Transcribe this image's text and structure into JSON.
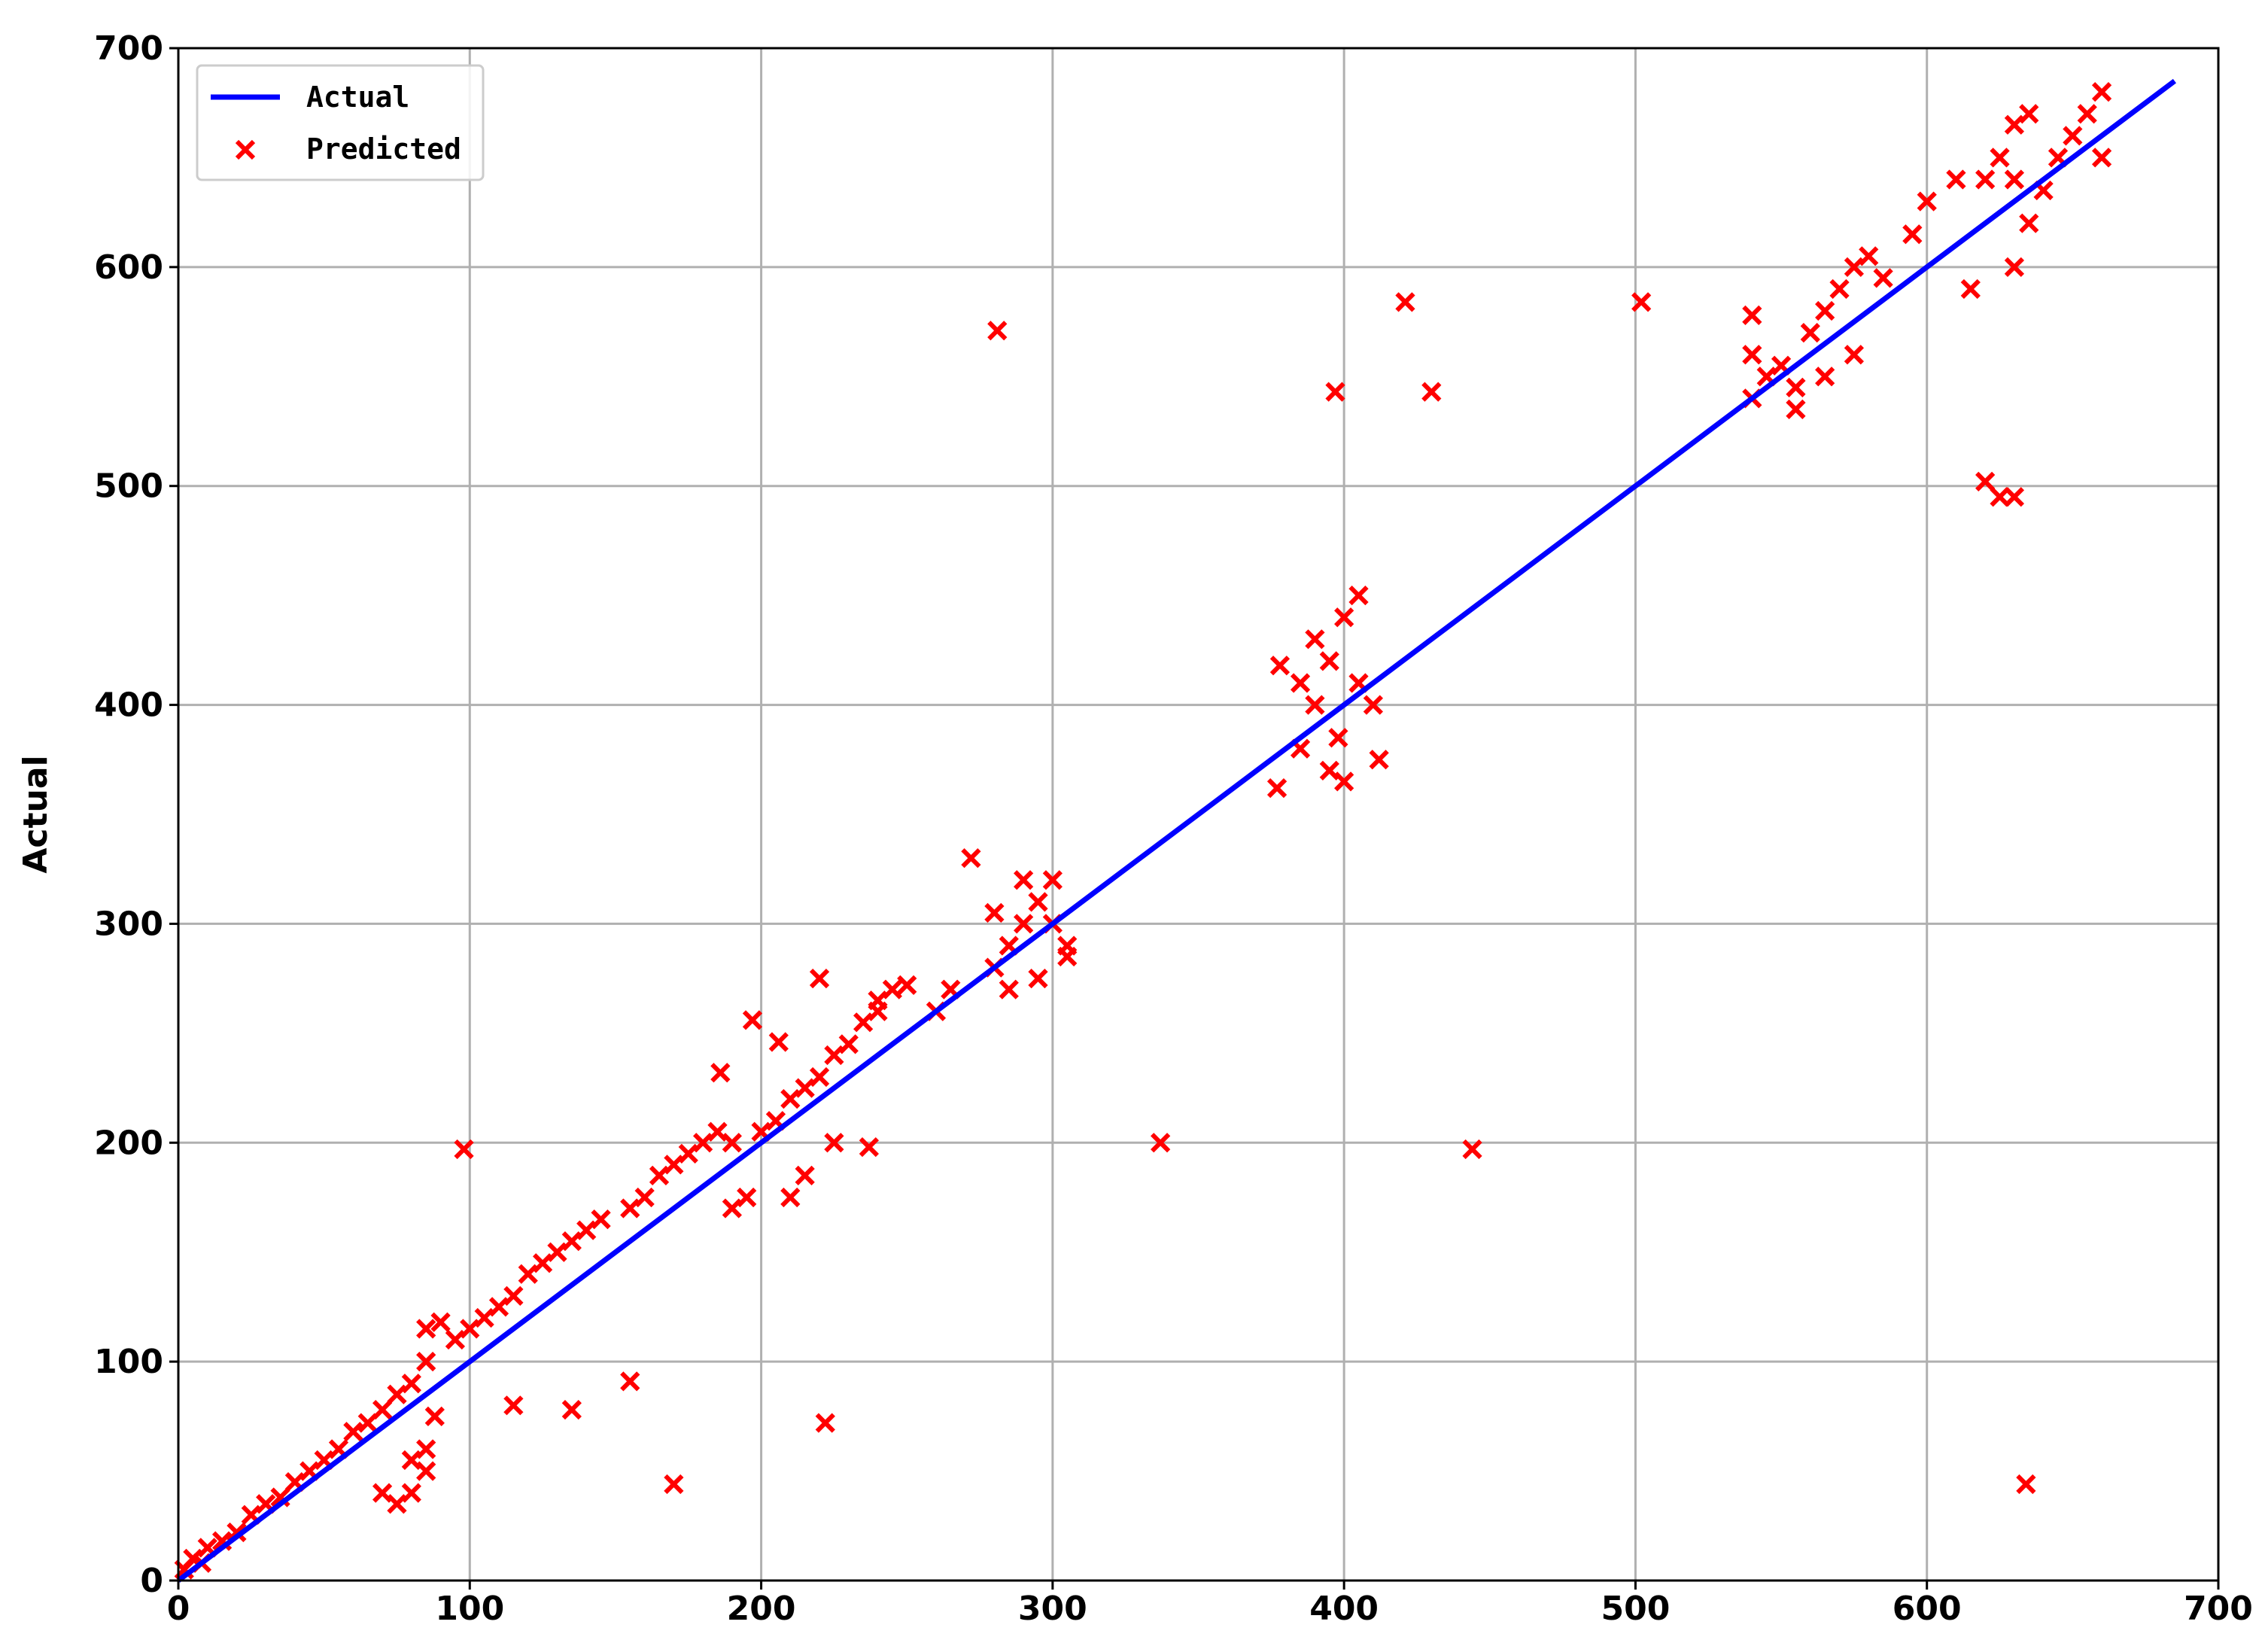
{
  "chart_data": {
    "type": "scatter",
    "y_label": "Actual",
    "grid": true,
    "legend": "upper left",
    "xlim": [
      0,
      700
    ],
    "ylim": [
      0,
      700
    ],
    "xticks": [
      0,
      100,
      200,
      300,
      400,
      500,
      600,
      700
    ],
    "yticks": [
      0,
      100,
      200,
      300,
      400,
      500,
      600,
      700
    ],
    "line": {
      "name": "Actual",
      "color": "#0000ff",
      "x": [
        0,
        685
      ],
      "values": [
        0,
        685
      ]
    },
    "series": [
      {
        "name": "Predicted",
        "color": "#ff0000",
        "x": [
          2,
          5,
          8,
          10,
          15,
          20,
          25,
          30,
          35,
          40,
          45,
          50,
          55,
          60,
          65,
          70,
          75,
          80,
          85,
          85,
          90,
          95,
          100,
          105,
          110,
          115,
          120,
          125,
          130,
          135,
          140,
          145,
          70,
          75,
          80,
          85,
          85,
          88,
          80,
          155,
          160,
          165,
          170,
          175,
          180,
          185,
          190,
          190,
          195,
          200,
          205,
          210,
          215,
          220,
          225,
          230,
          235,
          240,
          245,
          220,
          197,
          206,
          186,
          210,
          215,
          225,
          237,
          240,
          250,
          260,
          265,
          280,
          285,
          290,
          295,
          300,
          305,
          285,
          295,
          300,
          290,
          280,
          305,
          385,
          390,
          395,
          400,
          405,
          410,
          395,
          400,
          390,
          405,
          412,
          385,
          398,
          540,
          545,
          550,
          555,
          560,
          565,
          570,
          575,
          580,
          575,
          565,
          555,
          540,
          540,
          585,
          595,
          600,
          610,
          620,
          625,
          630,
          635,
          630,
          640,
          645,
          650,
          655,
          660,
          660,
          615,
          630,
          625,
          620,
          630,
          635,
          281,
          397,
          421,
          430,
          502,
          98,
          337,
          444,
          170,
          155,
          115,
          135,
          222,
          634,
          272,
          378,
          377
        ],
        "values": [
          5,
          10,
          8,
          15,
          18,
          22,
          30,
          35,
          38,
          45,
          50,
          55,
          60,
          68,
          72,
          78,
          85,
          90,
          100,
          115,
          118,
          110,
          115,
          120,
          125,
          130,
          140,
          145,
          150,
          155,
          160,
          165,
          40,
          35,
          40,
          50,
          60,
          75,
          55,
          170,
          175,
          185,
          190,
          195,
          200,
          205,
          200,
          170,
          175,
          205,
          210,
          220,
          225,
          230,
          240,
          245,
          255,
          260,
          270,
          275,
          256,
          246,
          232,
          175,
          185,
          200,
          198,
          265,
          272,
          260,
          270,
          280,
          290,
          300,
          310,
          320,
          290,
          270,
          275,
          300,
          320,
          305,
          285,
          380,
          400,
          420,
          440,
          450,
          400,
          370,
          365,
          430,
          410,
          375,
          410,
          385,
          540,
          550,
          555,
          545,
          570,
          580,
          590,
          600,
          605,
          560,
          550,
          535,
          578,
          560,
          595,
          615,
          630,
          640,
          640,
          650,
          665,
          670,
          640,
          635,
          650,
          660,
          670,
          680,
          650,
          590,
          600,
          495,
          502,
          495,
          620,
          571,
          543,
          584,
          543,
          584,
          197,
          200,
          197,
          44,
          91,
          80,
          78,
          72,
          44,
          330,
          418,
          362
        ]
      }
    ]
  }
}
